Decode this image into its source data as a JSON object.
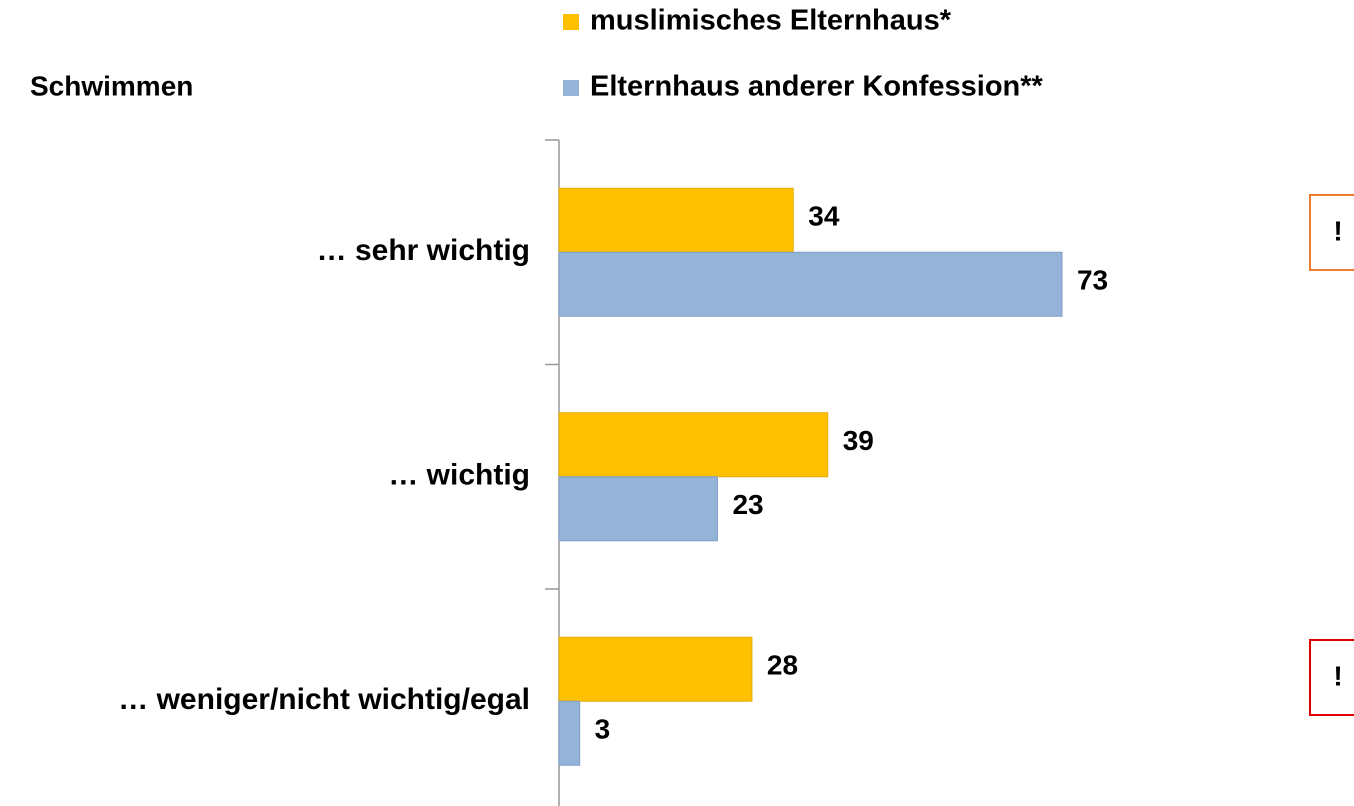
{
  "chart_data": {
    "type": "barh",
    "title": "Schwimmen",
    "categories": [
      "… sehr wichtig",
      "… wichtig",
      "… weniger/nicht wichtig/egal"
    ],
    "series": [
      {
        "name": "muslimisches Elternhaus*",
        "color": "#ffc000",
        "values": [
          34,
          39,
          28
        ]
      },
      {
        "name": "Elternhaus anderer Konfession**",
        "color": "#95b3d7",
        "values": [
          73,
          23,
          3
        ]
      }
    ],
    "xlim": [
      0,
      100
    ],
    "annotations": [
      "!",
      "!"
    ]
  }
}
